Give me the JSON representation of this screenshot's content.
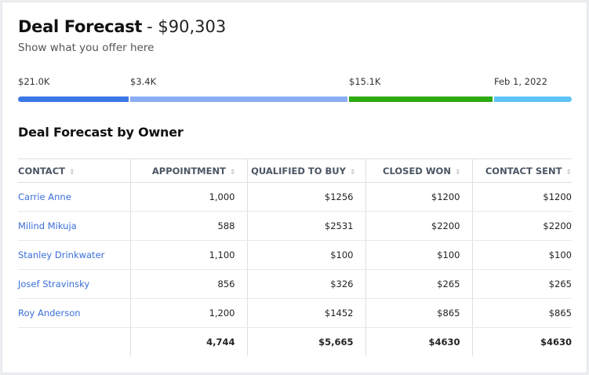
{
  "header": {
    "title": "Deal Forecast",
    "amount": "- $90,303",
    "subtitle": "Show what you offer here"
  },
  "progress": {
    "labels": [
      "$21.0K",
      "$3.4K",
      "$15.1K",
      "Feb 1, 2022"
    ],
    "segments": [
      {
        "value": 21.0,
        "color": "#3b78e7"
      },
      {
        "value": 3.4,
        "color": "#8badf5"
      },
      {
        "value": 15.1,
        "color": "#2caa0f"
      },
      {
        "value": null,
        "color": "#5ec3f7"
      }
    ]
  },
  "table": {
    "title": "Deal Forecast by Owner",
    "columns": [
      "CONTACT",
      "APPOINTMENT",
      "QUALIFIED TO BUY",
      "CLOSED WON",
      "CONTACT SENT"
    ],
    "rows": [
      [
        "Carrie Anne",
        "1,000",
        "$1256",
        "$1200",
        "$1200"
      ],
      [
        "Milind Mikuja",
        "588",
        "$2531",
        "$2200",
        "$2200"
      ],
      [
        "Stanley Drinkwater",
        "1,100",
        "$100",
        "$100",
        "$100"
      ],
      [
        "Josef Stravinsky",
        "856",
        "$326",
        "$265",
        "$265"
      ],
      [
        "Roy Anderson",
        "1,200",
        "$1452",
        "$865",
        "$865"
      ]
    ],
    "totals": [
      "",
      "4,744",
      "$5,665",
      "$4630",
      "$4630"
    ]
  }
}
